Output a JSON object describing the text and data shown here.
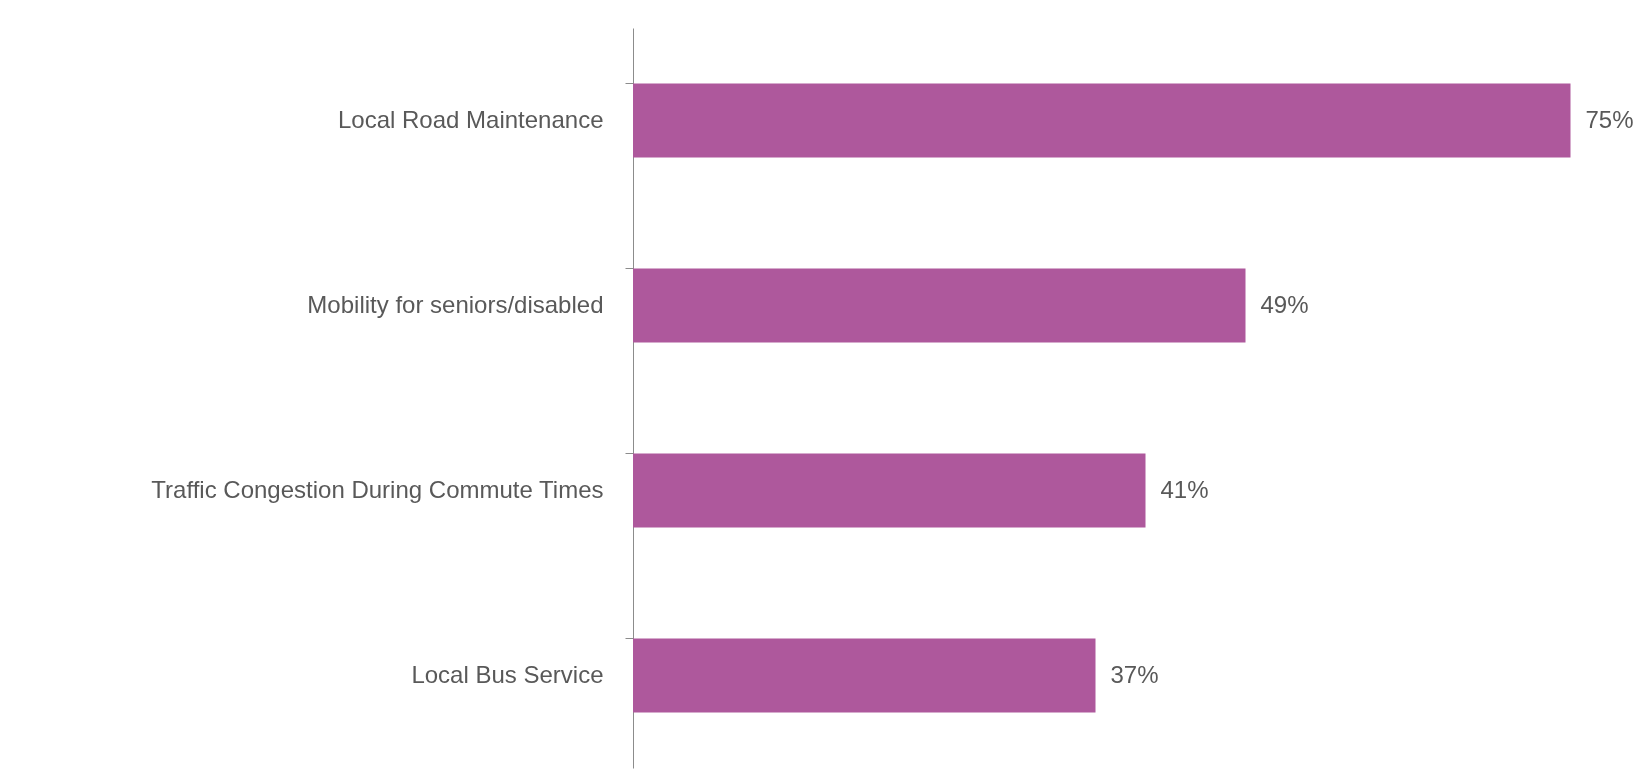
{
  "chart_data": {
    "type": "bar",
    "orientation": "horizontal",
    "categories": [
      "Local Road Maintenance",
      "Mobility for seniors/disabled",
      "Traffic Congestion During Commute Times",
      "Local Bus Service"
    ],
    "values": [
      75,
      49,
      41,
      37
    ],
    "value_labels": [
      "75%",
      "49%",
      "41%",
      "37%"
    ],
    "color": "#ae589c",
    "grid": false
  }
}
